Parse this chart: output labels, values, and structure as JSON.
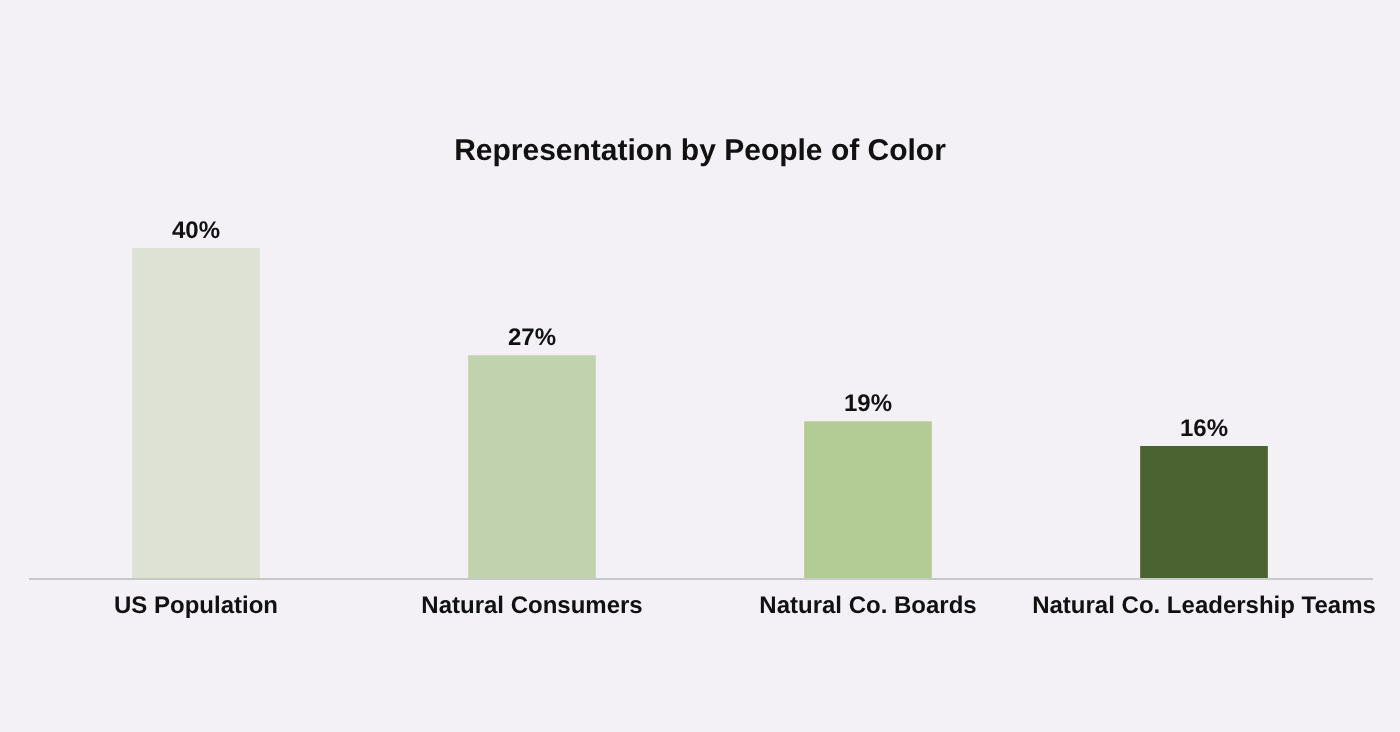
{
  "chart_data": {
    "type": "bar",
    "title": "Representation by People of Color",
    "categories": [
      "US Population",
      "Natural  Consumers",
      "Natural Co. Boards",
      "Natural Co. Leadership Teams"
    ],
    "values": [
      40,
      27,
      19,
      16
    ],
    "colors": [
      "#dde2d4",
      "#c1d2af",
      "#b3cc95",
      "#4b6231"
    ],
    "value_labels": [
      "40%",
      "27%",
      "19%",
      "16%"
    ]
  }
}
